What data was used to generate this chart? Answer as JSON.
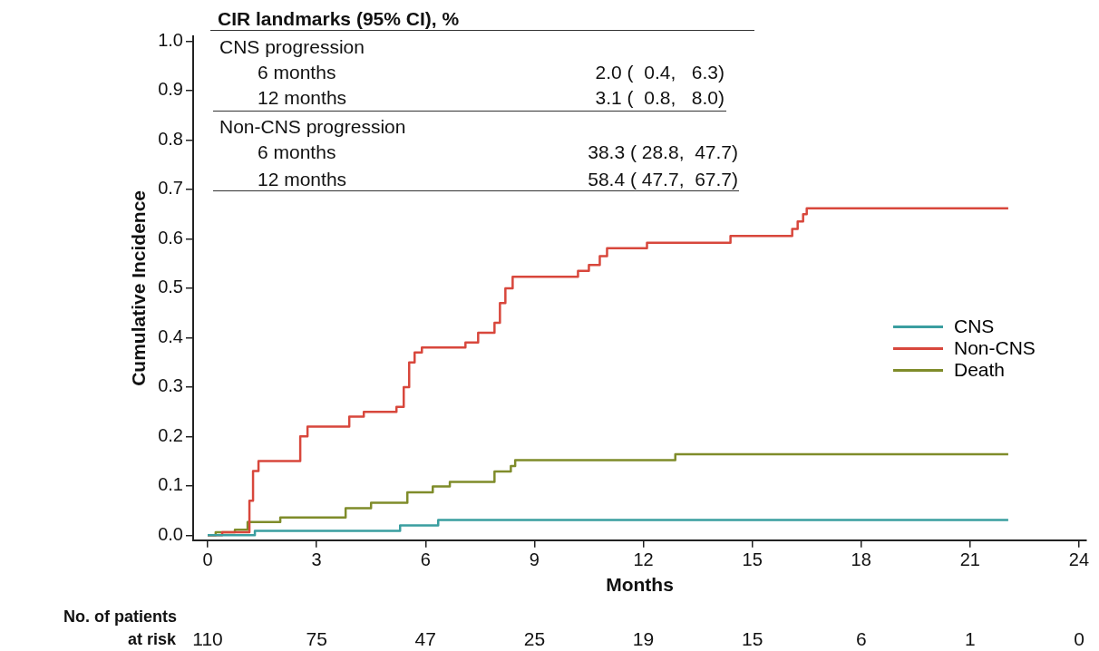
{
  "chart_data": {
    "type": "step",
    "xlabel": "Months",
    "ylabel": "Cumulative Incidence",
    "xlim": [
      -0.4,
      24.2
    ],
    "xticks": [
      0,
      3,
      6,
      9,
      12,
      15,
      18,
      21,
      24
    ],
    "ylim": [
      -0.01,
      1.01
    ],
    "yticks": [
      {
        "value": 0,
        "label": "0.0"
      },
      {
        "value": 0.1,
        "label": "0.1"
      },
      {
        "value": 0.2,
        "label": "0.2"
      },
      {
        "value": 0.3,
        "label": "0.3"
      },
      {
        "value": 0.4,
        "label": "0.4"
      },
      {
        "value": 0.5,
        "label": "0.5"
      },
      {
        "value": 0.6,
        "label": "0.6"
      },
      {
        "value": 0.7,
        "label": "0.7"
      },
      {
        "value": 0.8,
        "label": "0.8"
      },
      {
        "value": 0.9,
        "label": "0.9"
      },
      {
        "value": 1,
        "label": "1.0"
      }
    ],
    "grid": false,
    "legend": "right",
    "marker": "none",
    "line_style": "solid",
    "series": [
      {
        "name": "CNS",
        "color": "#3a9ea0",
        "x": [
          0,
          1.3,
          5.3,
          6.35,
          22.05
        ],
        "values": [
          0,
          0.009,
          0.02,
          0.031,
          0.031
        ]
      },
      {
        "name": "Non-CNS",
        "color": "#d8473c",
        "x": [
          0,
          0.4,
          1.15,
          1.25,
          1.4,
          2.55,
          2.75,
          3.9,
          4.3,
          5.2,
          5.4,
          5.55,
          5.7,
          5.9,
          7.1,
          7.45,
          7.9,
          8.05,
          8.2,
          8.4,
          10.2,
          10.5,
          10.8,
          11.0,
          12.1,
          14.4,
          16.1,
          16.25,
          16.4,
          16.5,
          22.05
        ],
        "values": [
          0,
          0.006,
          0.07,
          0.13,
          0.15,
          0.2,
          0.22,
          0.24,
          0.25,
          0.26,
          0.3,
          0.35,
          0.37,
          0.38,
          0.39,
          0.41,
          0.43,
          0.47,
          0.5,
          0.523,
          0.535,
          0.547,
          0.565,
          0.581,
          0.592,
          0.606,
          0.62,
          0.635,
          0.65,
          0.662,
          0.662
        ]
      },
      {
        "name": "Death",
        "color": "#7f8c2a",
        "x": [
          0,
          0.22,
          0.75,
          1.1,
          2.0,
          3.8,
          4.5,
          5.5,
          6.2,
          6.67,
          7.9,
          8.35,
          8.47,
          12.88,
          22.05
        ],
        "values": [
          0,
          0.006,
          0.011,
          0.027,
          0.036,
          0.055,
          0.066,
          0.087,
          0.099,
          0.108,
          0.129,
          0.14,
          0.152,
          0.164,
          0.164
        ]
      }
    ],
    "annotations": [
      "CIR landmarks (95% CI), %",
      "CNS progression",
      "6 months",
      "2.0 (  0.4,   6.3)",
      "12 months",
      "3.1 (  0.8,   8.0)",
      "Non-CNS progression",
      "6 months",
      "38.3 ( 28.8,  47.7)",
      "12 months",
      "58.4 ( 47.7,  67.7)",
      "No. of patients",
      "at risk",
      "110",
      "75",
      "47",
      "25",
      "19",
      "15",
      "6",
      "1",
      "0"
    ]
  }
}
